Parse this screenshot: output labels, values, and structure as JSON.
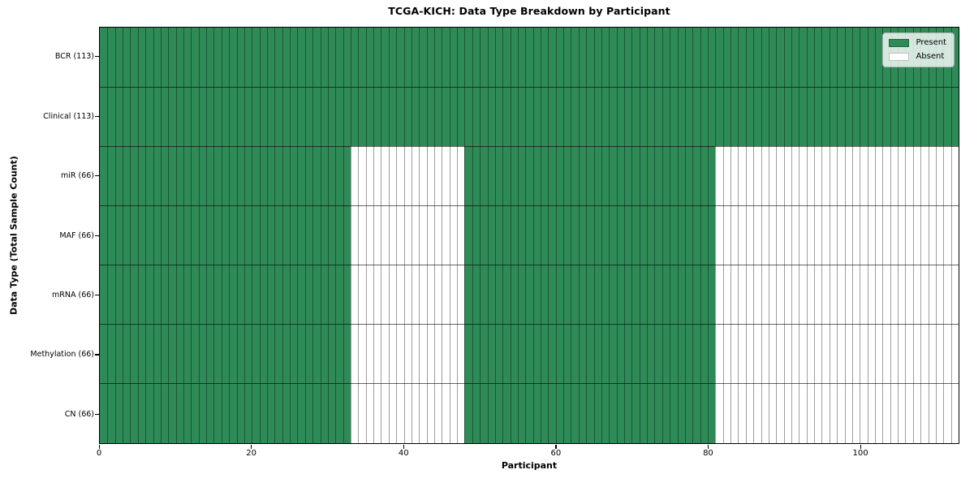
{
  "chart_data": {
    "type": "heatmap",
    "title": "TCGA-KICH: Data Type Breakdown by Participant",
    "xlabel": "Participant",
    "ylabel": "Data Type (Total Sample Count)",
    "n_participants": 113,
    "xlim": [
      0,
      113
    ],
    "x_ticks": [
      0,
      20,
      40,
      60,
      80,
      100
    ],
    "grid": true,
    "legend_position": "upper right",
    "legend": [
      {
        "label": "Present",
        "color": "#2e8b57"
      },
      {
        "label": "Absent",
        "color": "#ffffff"
      }
    ],
    "colors": {
      "present": "#2e8b57",
      "absent": "#ffffff",
      "cell_edge": "rgba(0,0,0,0.38)",
      "row_separator": "rgba(0,0,0,0.60)",
      "plot_border": "#000000"
    },
    "rows": [
      {
        "label": "BCR (113)",
        "total_samples": 113,
        "present_ranges": [
          [
            0,
            113
          ]
        ]
      },
      {
        "label": "Clinical (113)",
        "total_samples": 113,
        "present_ranges": [
          [
            0,
            113
          ]
        ]
      },
      {
        "label": "miR (66)",
        "total_samples": 66,
        "present_ranges": [
          [
            0,
            33
          ],
          [
            48,
            81
          ]
        ]
      },
      {
        "label": "MAF (66)",
        "total_samples": 66,
        "present_ranges": [
          [
            0,
            33
          ],
          [
            48,
            81
          ]
        ]
      },
      {
        "label": "mRNA (66)",
        "total_samples": 66,
        "present_ranges": [
          [
            0,
            33
          ],
          [
            48,
            81
          ]
        ]
      },
      {
        "label": "Methylation (66)",
        "total_samples": 66,
        "present_ranges": [
          [
            0,
            33
          ],
          [
            48,
            81
          ]
        ]
      },
      {
        "label": "CN (66)",
        "total_samples": 66,
        "present_ranges": [
          [
            0,
            33
          ],
          [
            48,
            81
          ]
        ]
      }
    ]
  }
}
